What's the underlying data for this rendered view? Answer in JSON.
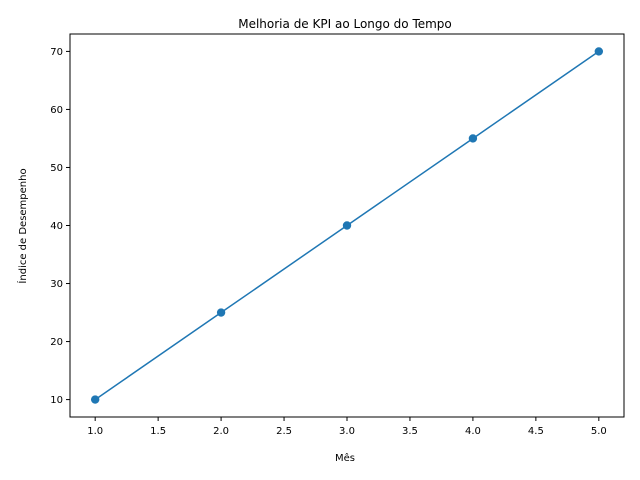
{
  "chart_data": {
    "type": "line",
    "title": "Melhoria de KPI ao Longo do Tempo",
    "xlabel": "Mês",
    "ylabel": "Índice de Desempenho",
    "x": [
      1,
      2,
      3,
      4,
      5
    ],
    "series": [
      {
        "values": [
          10,
          25,
          40,
          55,
          70
        ],
        "color": "#1f77b4",
        "marker": "circle"
      }
    ],
    "xlim": [
      0.8,
      5.2
    ],
    "ylim": [
      7,
      73
    ],
    "xticks": [
      1.0,
      1.5,
      2.0,
      2.5,
      3.0,
      3.5,
      4.0,
      4.5,
      5.0
    ],
    "xtick_labels": [
      "1.0",
      "1.5",
      "2.0",
      "2.5",
      "3.0",
      "3.5",
      "4.0",
      "4.5",
      "5.0"
    ],
    "yticks": [
      10,
      20,
      30,
      40,
      50,
      60,
      70
    ],
    "ytick_labels": [
      "10",
      "20",
      "30",
      "40",
      "50",
      "60",
      "70"
    ],
    "grid": false,
    "legend": "none"
  }
}
